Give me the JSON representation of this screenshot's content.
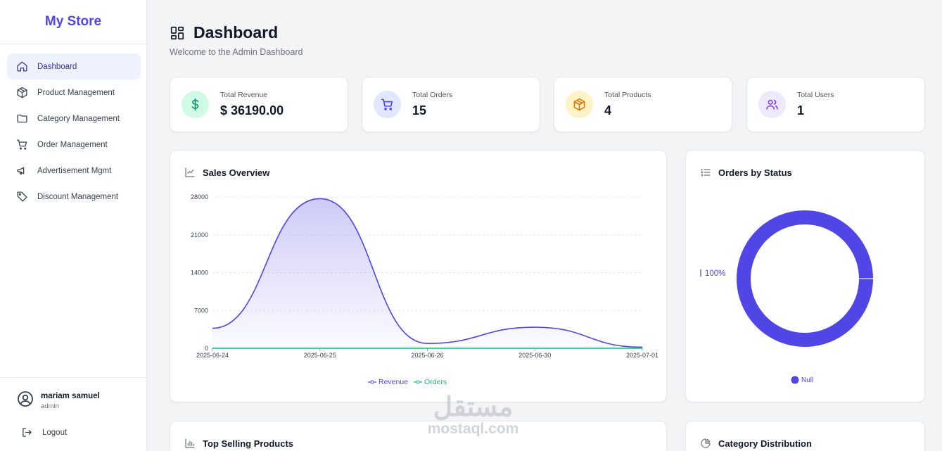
{
  "app": {
    "brand": "My Store"
  },
  "sidebar": {
    "items": [
      {
        "label": "Dashboard",
        "icon": "home-icon",
        "active": true
      },
      {
        "label": "Product Management",
        "icon": "box-icon"
      },
      {
        "label": "Category Management",
        "icon": "folder-icon"
      },
      {
        "label": "Order Management",
        "icon": "cart-icon"
      },
      {
        "label": "Advertisement Mgmt",
        "icon": "megaphone-icon"
      },
      {
        "label": "Discount Management",
        "icon": "tag-icon"
      }
    ],
    "user": {
      "name": "mariam samuel",
      "role": "admin"
    },
    "logout_label": "Logout"
  },
  "header": {
    "title": "Dashboard",
    "subtitle": "Welcome to the Admin Dashboard"
  },
  "stats": [
    {
      "label": "Total Revenue",
      "value": "$ 36190.00",
      "icon": "dollar-icon",
      "bg": "#d1fae5",
      "fg": "#059669"
    },
    {
      "label": "Total Orders",
      "value": "15",
      "icon": "cart-icon",
      "bg": "#e0e7ff",
      "fg": "#4f46e5"
    },
    {
      "label": "Total Products",
      "value": "4",
      "icon": "box-icon",
      "bg": "#fef3c7",
      "fg": "#d97706"
    },
    {
      "label": "Total Users",
      "value": "1",
      "icon": "users-icon",
      "bg": "#ede9fe",
      "fg": "#7c3aed"
    }
  ],
  "panels": {
    "sales": {
      "title": "Sales Overview"
    },
    "orders_status": {
      "title": "Orders by Status"
    },
    "top_products": {
      "title": "Top Selling Products"
    },
    "category_dist": {
      "title": "Category Distribution"
    }
  },
  "chart_data": [
    {
      "type": "area",
      "title": "Sales Overview",
      "categories": [
        "2025-06-24",
        "2025-06-25",
        "2025-06-26",
        "2025-06-30",
        "2025-07-01"
      ],
      "yticks": [
        0,
        7000,
        14000,
        21000,
        28000
      ],
      "ylim": [
        0,
        28000
      ],
      "grid": true,
      "legend": "bottom",
      "series": [
        {
          "name": "Revenue",
          "values": [
            3700,
            27700,
            900,
            3900,
            200
          ],
          "color": "#4f46e5"
        },
        {
          "name": "Orders",
          "values": [
            1,
            1,
            1,
            1,
            1
          ],
          "color": "#10b981"
        }
      ]
    },
    {
      "type": "pie",
      "title": "Orders by Status",
      "slices": [
        {
          "label": "Null",
          "value": 100,
          "color": "#4f46e5"
        }
      ],
      "data_label": "100%",
      "legend": "bottom"
    }
  ],
  "watermark": {
    "arabic": "مستقل",
    "latin": "mostaql.com"
  }
}
